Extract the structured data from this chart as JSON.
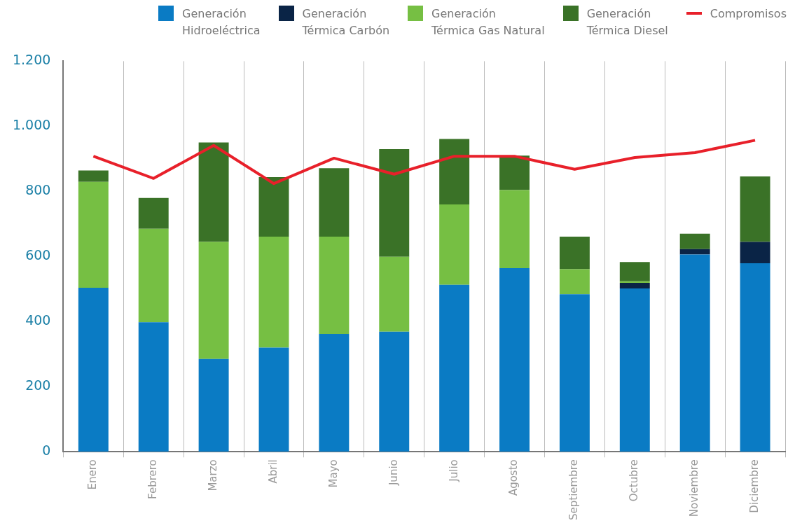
{
  "chart_data": {
    "type": "bar",
    "stacked": true,
    "categories": [
      "Enero",
      "Febrero",
      "Marzo",
      "Abril",
      "Mayo",
      "Junio",
      "Julio",
      "Agosto",
      "Septiembre",
      "Octubre",
      "Noviembre",
      "Diciembre"
    ],
    "series": [
      {
        "name": "Generación Hidroeléctrica",
        "color": "#0a7bc4",
        "values": [
          504,
          398,
          285,
          320,
          362,
          369,
          513,
          564,
          484,
          502,
          606,
          579
        ]
      },
      {
        "name": "Generación Térmica Carbón",
        "color": "#0a2446",
        "values": [
          0,
          0,
          0,
          0,
          0,
          0,
          0,
          0,
          0,
          17,
          17,
          66
        ]
      },
      {
        "name": "Generación Térmica Gas Natural",
        "color": "#76bf43",
        "values": [
          325,
          287,
          360,
          341,
          299,
          230,
          247,
          240,
          77,
          5,
          0,
          0
        ]
      },
      {
        "name": "Generación Térmica Diesel",
        "color": "#3a7227",
        "values": [
          35,
          95,
          305,
          183,
          210,
          331,
          201,
          106,
          100,
          59,
          47,
          201
        ]
      },
      {
        "name": "Compromisos",
        "type": "line",
        "color": "#e8202a",
        "values": [
          908,
          840,
          941,
          824,
          902,
          853,
          908,
          908,
          868,
          904,
          919,
          957
        ]
      }
    ],
    "ylim": [
      0,
      1200
    ],
    "yticks": [
      {
        "value": 0,
        "label": "0"
      },
      {
        "value": 200,
        "label": "200"
      },
      {
        "value": 400,
        "label": "400"
      },
      {
        "value": 600,
        "label": "600"
      },
      {
        "value": 800,
        "label": "800"
      },
      {
        "value": 1000,
        "label": "1.000"
      },
      {
        "value": 1200,
        "label": "1.200"
      }
    ],
    "grid": "x",
    "legend": "top",
    "marker": "none"
  }
}
